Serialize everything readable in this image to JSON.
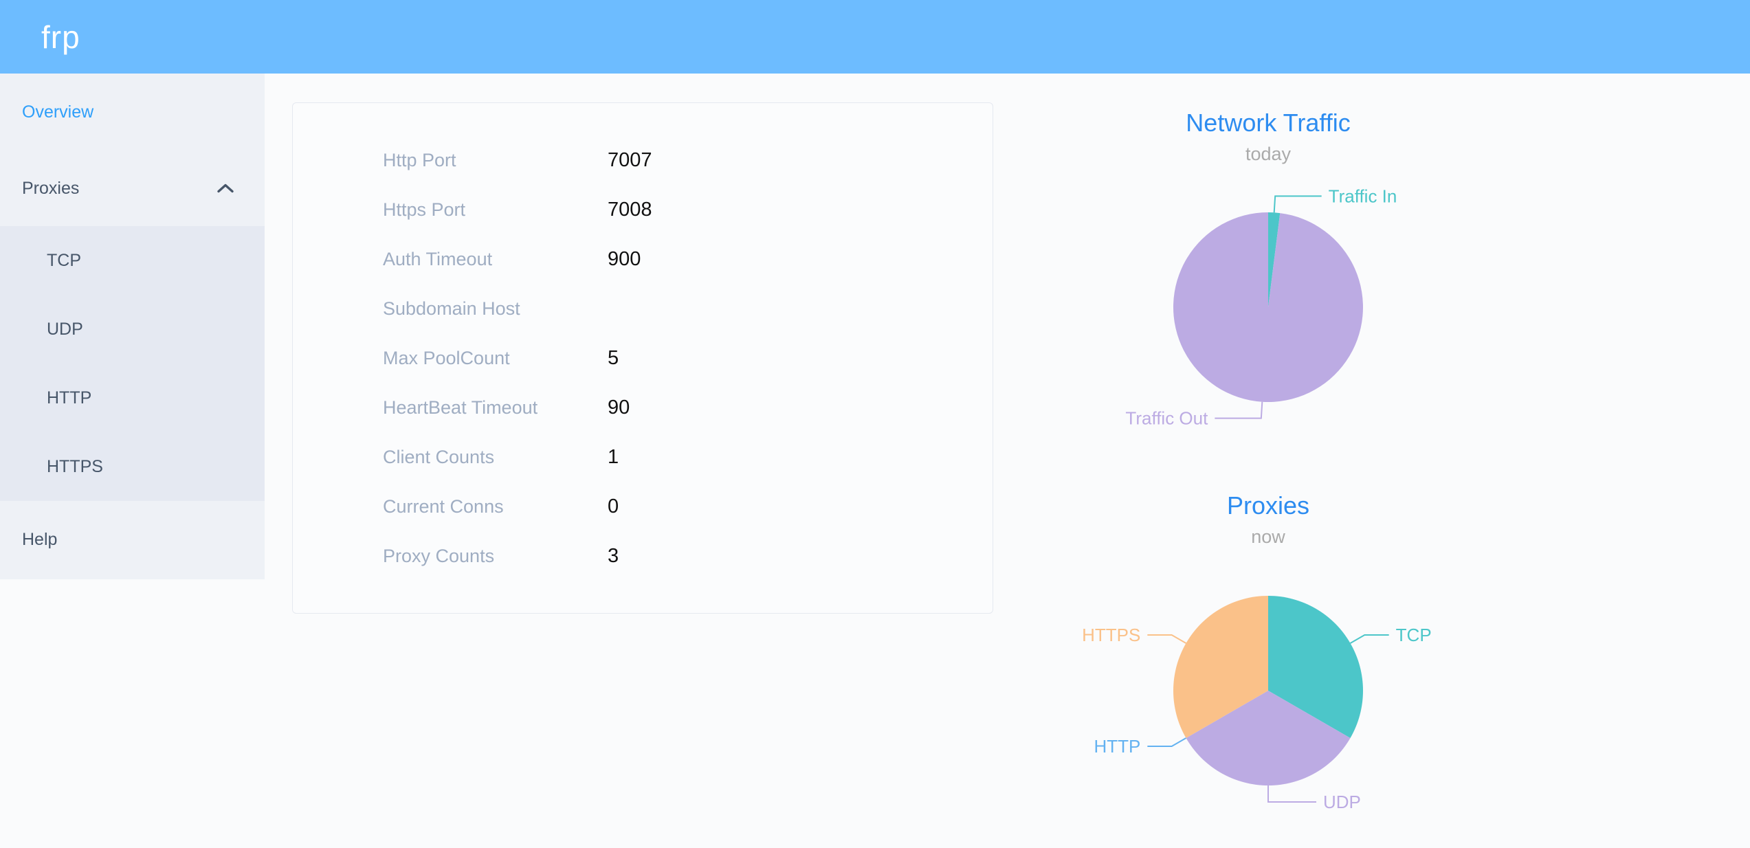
{
  "header": {
    "logo": "frp",
    "bg_color": "#6dbcff"
  },
  "sidebar": {
    "items": [
      {
        "label": "Overview",
        "active": true
      },
      {
        "label": "Proxies",
        "expanded": true
      },
      {
        "label": "TCP",
        "child": true
      },
      {
        "label": "UDP",
        "child": true
      },
      {
        "label": "HTTP",
        "child": true
      },
      {
        "label": "HTTPS",
        "child": true
      },
      {
        "label": "Help"
      }
    ],
    "colors": {
      "bg": "#eef1f6",
      "submenu_bg": "#e5e9f2",
      "text": "#475669",
      "active_text": "#2e9ffa"
    }
  },
  "overview": {
    "rows": [
      {
        "label": "Http Port",
        "value": "7007"
      },
      {
        "label": "Https Port",
        "value": "7008"
      },
      {
        "label": "Auth Timeout",
        "value": "900"
      },
      {
        "label": "Subdomain Host",
        "value": ""
      },
      {
        "label": "Max PoolCount",
        "value": "5"
      },
      {
        "label": "HeartBeat Timeout",
        "value": "90"
      },
      {
        "label": "Client Counts",
        "value": "1"
      },
      {
        "label": "Current Conns",
        "value": "0"
      },
      {
        "label": "Proxy Counts",
        "value": "3"
      }
    ]
  },
  "chart_data": [
    {
      "type": "pie",
      "title": "Network Traffic",
      "subtitle": "today",
      "unit": "percent of total traffic (estimated from slice angles)",
      "start_angle": 90,
      "label_position": "outside",
      "legend": "off",
      "series": [
        {
          "name": "Traffic In",
          "value": 2,
          "color": "#4cc6c9"
        },
        {
          "name": "Traffic Out",
          "value": 98,
          "color": "#bcabe3"
        }
      ]
    },
    {
      "type": "pie",
      "title": "Proxies",
      "subtitle": "now",
      "unit": "proxy count (total = 3)",
      "start_angle": 90,
      "label_position": "outside",
      "legend": "off",
      "series": [
        {
          "name": "TCP",
          "value": 1,
          "color": "#4cc6c9"
        },
        {
          "name": "UDP",
          "value": 1,
          "color": "#bcabe3"
        },
        {
          "name": "HTTP",
          "value": 0,
          "color": "#63b2f1"
        },
        {
          "name": "HTTPS",
          "value": 1,
          "color": "#fac189"
        }
      ]
    }
  ],
  "colors": {
    "title_blue": "#2d8cf0",
    "subtitle_gray": "#aaaaaa",
    "label_gray": "#9fadc2",
    "value_black": "#111111",
    "main_bg": "#fafbfc",
    "card_border": "#e5e9f0"
  }
}
